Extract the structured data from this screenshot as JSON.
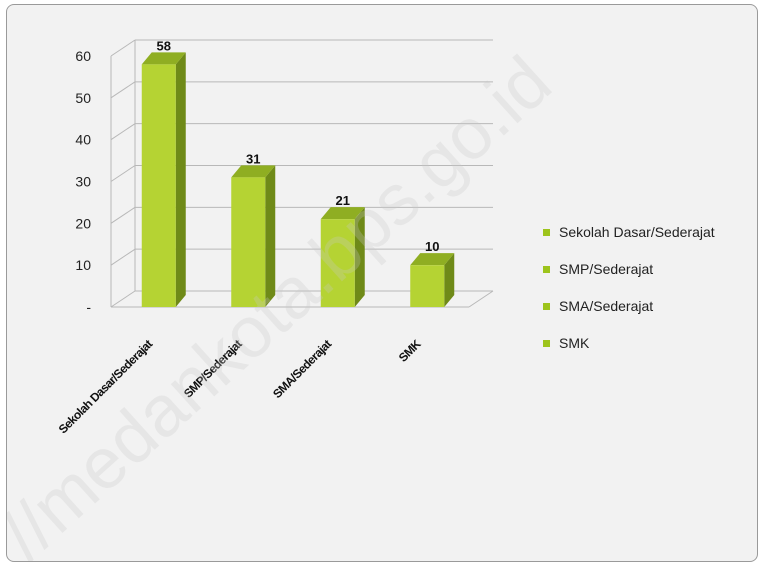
{
  "watermark": "//medankota.bps.go.id",
  "colors": {
    "bar_front": "#b5d333",
    "bar_side": "#6f8a18",
    "bar_top": "#8fae22",
    "grid": "#b8b8b8",
    "legend_marker": "#9dc41c"
  },
  "chart_data": {
    "type": "bar",
    "categories": [
      "Sekolah Dasar/Sederajat",
      "SMP/Sederajat",
      "SMA/Sederajat",
      "SMK"
    ],
    "values": [
      58,
      31,
      21,
      10
    ],
    "data_labels": [
      "58",
      "31",
      "21",
      "10"
    ],
    "y_ticks": [
      {
        "value": 0,
        "label": "-"
      },
      {
        "value": 10,
        "label": "10"
      },
      {
        "value": 20,
        "label": "20"
      },
      {
        "value": 30,
        "label": "30"
      },
      {
        "value": 40,
        "label": "40"
      },
      {
        "value": 50,
        "label": "50"
      },
      {
        "value": 60,
        "label": "60"
      }
    ],
    "ylim": [
      0,
      60
    ],
    "grid": true,
    "three_d": true,
    "legend": {
      "placement": "right",
      "entries": [
        "Sekolah Dasar/Sederajat",
        "SMP/Sederajat",
        "SMA/Sederajat",
        "SMK"
      ]
    },
    "title": "",
    "xlabel": "",
    "ylabel": ""
  }
}
